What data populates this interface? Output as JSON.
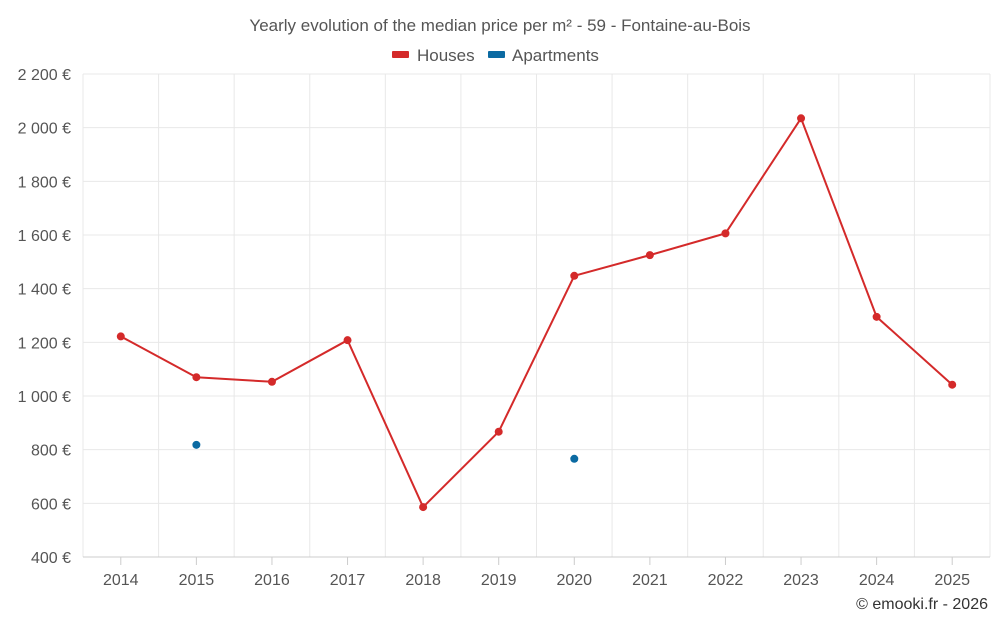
{
  "chart_data": {
    "type": "line",
    "title": "Yearly evolution of the median price per m² - 59 - Fontaine-au-Bois",
    "categories": [
      "2014",
      "2015",
      "2016",
      "2017",
      "2018",
      "2019",
      "2020",
      "2021",
      "2022",
      "2023",
      "2024",
      "2025"
    ],
    "ylim": [
      400,
      2200
    ],
    "yticks": [
      400,
      600,
      800,
      1000,
      1200,
      1400,
      1600,
      1800,
      2000,
      2200
    ],
    "ytick_labels": [
      "400 €",
      "600 €",
      "800 €",
      "1 000 €",
      "1 200 €",
      "1 400 €",
      "1 600 €",
      "1 800 €",
      "2 000 €",
      "2 200 €"
    ],
    "grid": true,
    "legend_position": "top-center",
    "series": [
      {
        "name": "Houses",
        "color": "#d42a2a",
        "values": [
          1222,
          1070,
          1053,
          1208,
          586,
          867,
          1448,
          1525,
          1606,
          2035,
          1295,
          1042
        ]
      },
      {
        "name": "Apartments",
        "color": "#0b6aa2",
        "values": [
          null,
          818,
          null,
          null,
          null,
          null,
          766,
          null,
          null,
          null,
          null,
          null
        ]
      }
    ]
  },
  "credit": "© emooki.fr - 2026"
}
